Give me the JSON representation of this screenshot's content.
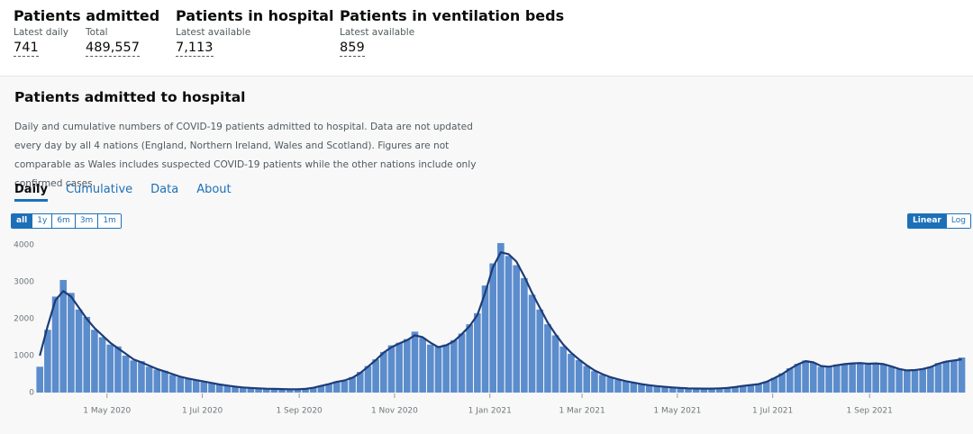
{
  "summary": [
    {
      "title": "Patients admitted",
      "metrics": [
        {
          "label": "Latest daily",
          "value": "741"
        },
        {
          "label": "Total",
          "value": "489,557"
        }
      ]
    },
    {
      "title": "Patients in hospital",
      "metrics": [
        {
          "label": "Latest available",
          "value": "7,113"
        }
      ]
    },
    {
      "title": "Patients in ventilation beds",
      "metrics": [
        {
          "label": "Latest available",
          "value": "859"
        }
      ]
    }
  ],
  "card": {
    "title": "Patients admitted to hospital",
    "description": "Daily and cumulative numbers of COVID-19 patients admitted to hospital. Data are not updated every day by all 4 nations (England, Northern Ireland, Wales and Scotland). Figures are not comparable as Wales includes suspected COVID-19 patients while the other nations include only confirmed cases.",
    "tabs": [
      "Daily",
      "Cumulative",
      "Data",
      "About"
    ],
    "range_buttons": [
      "all",
      "1y",
      "6m",
      "3m",
      "1m"
    ],
    "scale_buttons": [
      "Linear",
      "Log"
    ]
  },
  "chart_data": {
    "type": "bar",
    "x": [
      "2020-03-19",
      "2020-03-24",
      "2020-03-29",
      "2020-04-03",
      "2020-04-08",
      "2020-04-13",
      "2020-04-18",
      "2020-04-23",
      "2020-04-28",
      "2020-05-03",
      "2020-05-08",
      "2020-05-13",
      "2020-05-18",
      "2020-05-23",
      "2020-05-28",
      "2020-06-02",
      "2020-06-07",
      "2020-06-12",
      "2020-06-17",
      "2020-06-22",
      "2020-06-27",
      "2020-07-02",
      "2020-07-07",
      "2020-07-12",
      "2020-07-17",
      "2020-07-22",
      "2020-07-27",
      "2020-08-01",
      "2020-08-06",
      "2020-08-11",
      "2020-08-16",
      "2020-08-21",
      "2020-08-26",
      "2020-08-31",
      "2020-09-05",
      "2020-09-10",
      "2020-09-15",
      "2020-09-20",
      "2020-09-25",
      "2020-09-30",
      "2020-10-05",
      "2020-10-10",
      "2020-10-15",
      "2020-10-20",
      "2020-10-25",
      "2020-10-30",
      "2020-11-04",
      "2020-11-09",
      "2020-11-14",
      "2020-11-19",
      "2020-11-24",
      "2020-11-29",
      "2020-12-04",
      "2020-12-09",
      "2020-12-14",
      "2020-12-19",
      "2020-12-24",
      "2020-12-29",
      "2021-01-03",
      "2021-01-08",
      "2021-01-13",
      "2021-01-18",
      "2021-01-23",
      "2021-01-28",
      "2021-02-02",
      "2021-02-07",
      "2021-02-12",
      "2021-02-17",
      "2021-02-22",
      "2021-02-27",
      "2021-03-04",
      "2021-03-09",
      "2021-03-14",
      "2021-03-19",
      "2021-03-24",
      "2021-03-29",
      "2021-04-03",
      "2021-04-08",
      "2021-04-13",
      "2021-04-18",
      "2021-04-23",
      "2021-04-28",
      "2021-05-03",
      "2021-05-08",
      "2021-05-13",
      "2021-05-18",
      "2021-05-23",
      "2021-05-28",
      "2021-06-02",
      "2021-06-07",
      "2021-06-12",
      "2021-06-17",
      "2021-06-22",
      "2021-06-27",
      "2021-07-02",
      "2021-07-07",
      "2021-07-12",
      "2021-07-17",
      "2021-07-22",
      "2021-07-27",
      "2021-08-01",
      "2021-08-06",
      "2021-08-11",
      "2021-08-16",
      "2021-08-21",
      "2021-08-26",
      "2021-08-31",
      "2021-09-05",
      "2021-09-10",
      "2021-09-15",
      "2021-09-20",
      "2021-09-25",
      "2021-09-30",
      "2021-10-05",
      "2021-10-10",
      "2021-10-15",
      "2021-10-20",
      "2021-10-25",
      "2021-10-30"
    ],
    "series": [
      {
        "type": "bar",
        "color": "#5b8ccc",
        "values": [
          700,
          1700,
          2600,
          3050,
          2700,
          2250,
          2050,
          1700,
          1500,
          1300,
          1250,
          1000,
          870,
          850,
          700,
          620,
          590,
          480,
          420,
          370,
          330,
          290,
          250,
          230,
          180,
          150,
          140,
          120,
          110,
          100,
          105,
          90,
          85,
          95,
          105,
          140,
          190,
          240,
          300,
          320,
          420,
          560,
          720,
          900,
          1100,
          1280,
          1350,
          1450,
          1650,
          1480,
          1300,
          1250,
          1300,
          1420,
          1600,
          1850,
          2150,
          2900,
          3500,
          4050,
          3700,
          3450,
          3100,
          2650,
          2250,
          1850,
          1550,
          1250,
          1050,
          880,
          720,
          580,
          480,
          410,
          350,
          300,
          260,
          220,
          195,
          170,
          150,
          135,
          120,
          110,
          105,
          110,
          105,
          120,
          130,
          155,
          185,
          210,
          240,
          300,
          400,
          520,
          660,
          780,
          870,
          810,
          700,
          690,
          760,
          780,
          800,
          810,
          760,
          800,
          760,
          700,
          630,
          590,
          620,
          650,
          700,
          800,
          850,
          880,
          950
        ]
      },
      {
        "type": "line",
        "color": "#1d3c78",
        "values": [
          1000,
          1800,
          2500,
          2750,
          2600,
          2300,
          2000,
          1750,
          1550,
          1350,
          1200,
          1050,
          900,
          820,
          730,
          640,
          570,
          500,
          430,
          380,
          340,
          300,
          260,
          220,
          190,
          160,
          140,
          125,
          115,
          105,
          100,
          95,
          90,
          90,
          100,
          130,
          180,
          230,
          290,
          330,
          400,
          530,
          700,
          880,
          1080,
          1230,
          1330,
          1420,
          1550,
          1500,
          1350,
          1230,
          1280,
          1390,
          1580,
          1800,
          2100,
          2700,
          3400,
          3800,
          3750,
          3550,
          3150,
          2700,
          2300,
          1900,
          1580,
          1300,
          1080,
          900,
          740,
          600,
          500,
          420,
          360,
          310,
          270,
          230,
          200,
          175,
          155,
          140,
          125,
          115,
          110,
          108,
          108,
          115,
          125,
          150,
          180,
          205,
          230,
          290,
          390,
          500,
          640,
          760,
          850,
          820,
          720,
          700,
          740,
          770,
          790,
          800,
          780,
          790,
          770,
          710,
          640,
          600,
          610,
          640,
          690,
          780,
          840,
          870,
          900
        ]
      }
    ],
    "xlim": [
      "2020-03-16",
      "2021-11-01"
    ],
    "xticks": [
      {
        "value": "2020-05-01",
        "label": "1 May 2020"
      },
      {
        "value": "2020-07-01",
        "label": "1 Jul 2020"
      },
      {
        "value": "2020-09-01",
        "label": "1 Sep 2020"
      },
      {
        "value": "2020-11-01",
        "label": "1 Nov 2020"
      },
      {
        "value": "2021-01-01",
        "label": "1 Jan 2021"
      },
      {
        "value": "2021-03-01",
        "label": "1 Mar 2021"
      },
      {
        "value": "2021-05-01",
        "label": "1 May 2021"
      },
      {
        "value": "2021-07-01",
        "label": "1 Jul 2021"
      },
      {
        "value": "2021-09-01",
        "label": "1 Sep 2021"
      }
    ],
    "ylim": [
      0,
      4000
    ],
    "yticks": [
      0,
      1000,
      2000,
      3000,
      4000
    ],
    "grid": false,
    "log_scale": false
  }
}
